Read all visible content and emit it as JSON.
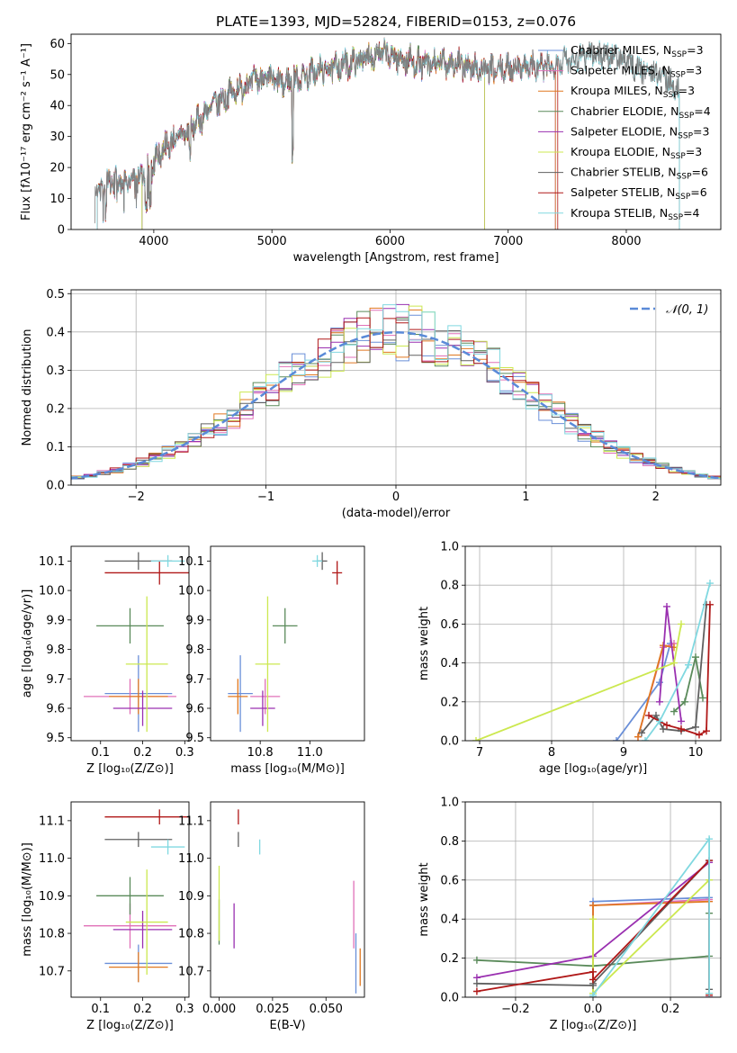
{
  "colors": {
    "Chabrier MILES": "#6a8fd8",
    "Salpeter MILES": "#e070b8",
    "Kroupa MILES": "#e07820",
    "Chabrier ELODIE": "#5a8a5a",
    "Salpeter ELODIE": "#9a30b0",
    "Kroupa ELODIE": "#cce850",
    "Chabrier STELIB": "#606060",
    "Salpeter STELIB": "#b01818",
    "Kroupa STELIB": "#80d8e0"
  },
  "chart_data": [
    {
      "id": "spectrum",
      "type": "line",
      "title": "PLATE=1393, MJD=52824, FIBERID=0153, z=0.076",
      "xlabel": "wavelength [Angstrom, rest frame]",
      "ylabel": "Flux [fλ10⁻¹⁷ erg cm⁻² s⁻¹ A⁻¹]",
      "xlim": [
        3300,
        8800
      ],
      "ylim": [
        0,
        63
      ],
      "xticks": [
        "4000",
        "5000",
        "6000",
        "7000",
        "8000"
      ],
      "yticks": [
        "0",
        "10",
        "20",
        "30",
        "40",
        "50",
        "60"
      ],
      "observed": {
        "x": [
          3500,
          3700,
          3900,
          4100,
          4300,
          4500,
          4700,
          4900,
          5100,
          5300,
          5500,
          5700,
          5900,
          6100,
          6300,
          6500,
          6700,
          6900,
          7100,
          7300,
          7500,
          7700,
          7900,
          8100,
          8300,
          8450
        ],
        "y": [
          14,
          15,
          17,
          27,
          32,
          40,
          45,
          49,
          47,
          50,
          52,
          54,
          57,
          55,
          53,
          54,
          52,
          51,
          53,
          52,
          55,
          57,
          56,
          52,
          50,
          45
        ]
      },
      "legend": [
        {
          "label": "Chabrier MILES, N",
          "sub": "SSP",
          "value": "=3"
        },
        {
          "label": "Salpeter MILES, N",
          "sub": "SSP",
          "value": "=3"
        },
        {
          "label": "Kroupa MILES, N",
          "sub": "SSP",
          "value": "=3"
        },
        {
          "label": "Chabrier ELODIE, N",
          "sub": "SSP",
          "value": "=4"
        },
        {
          "label": "Salpeter ELODIE, N",
          "sub": "SSP",
          "value": "=3"
        },
        {
          "label": "Kroupa ELODIE, N",
          "sub": "SSP",
          "value": "=3"
        },
        {
          "label": "Chabrier STELIB, N",
          "sub": "SSP",
          "value": "=6"
        },
        {
          "label": "Salpeter STELIB, N",
          "sub": "SSP",
          "value": "=6"
        },
        {
          "label": "Kroupa STELIB, N",
          "sub": "SSP",
          "value": "=4"
        }
      ],
      "legend_loc": "right"
    },
    {
      "id": "residuals",
      "type": "line",
      "xlabel": "(data-model)/error",
      "ylabel": "Normed distribution",
      "xlim": [
        -2.5,
        2.5
      ],
      "ylim": [
        0,
        0.51
      ],
      "xticks": [
        "−2",
        "−1",
        "0",
        "1",
        "2"
      ],
      "yticks": [
        "0.0",
        "0.1",
        "0.2",
        "0.3",
        "0.4",
        "0.5"
      ],
      "grid": true,
      "legend": "𝒩(0, 1)",
      "legend_loc": "top-right",
      "gaussian": {
        "mu": 0,
        "sigma": 1
      }
    },
    {
      "id": "age_vs_Z",
      "type": "scatter",
      "xlabel": "Z [log₁₀(Z/Z⊙)]",
      "ylabel": "age  [log₁₀(age/yr)]",
      "xlim": [
        0.03,
        0.31
      ],
      "ylim": [
        9.49,
        10.15
      ],
      "xticks": [
        "0.1",
        "0.2",
        "0.3"
      ],
      "yticks": [
        "9.5",
        "9.6",
        "9.7",
        "9.8",
        "9.9",
        "10.0",
        "10.1"
      ],
      "points": [
        {
          "model": "Chabrier MILES",
          "x": 0.19,
          "y": 9.65,
          "xerr": 0.08,
          "yerr": 0.13
        },
        {
          "model": "Salpeter MILES",
          "x": 0.17,
          "y": 9.64,
          "xerr": 0.11,
          "yerr": 0.06
        },
        {
          "model": "Kroupa MILES",
          "x": 0.19,
          "y": 9.64,
          "xerr": 0.07,
          "yerr": 0.06
        },
        {
          "model": "Chabrier ELODIE",
          "x": 0.17,
          "y": 9.88,
          "xerr": 0.08,
          "yerr": 0.06
        },
        {
          "model": "Salpeter ELODIE",
          "x": 0.2,
          "y": 9.6,
          "xerr": 0.07,
          "yerr": 0.06
        },
        {
          "model": "Kroupa ELODIE",
          "x": 0.21,
          "y": 9.75,
          "xerr": 0.05,
          "yerr": 0.23
        },
        {
          "model": "Chabrier STELIB",
          "x": 0.19,
          "y": 10.1,
          "xerr": 0.08,
          "yerr": 0.03
        },
        {
          "model": "Salpeter STELIB",
          "x": 0.24,
          "y": 10.06,
          "xerr": 0.13,
          "yerr": 0.04
        },
        {
          "model": "Kroupa STELIB",
          "x": 0.26,
          "y": 10.1,
          "xerr": 0.04,
          "yerr": 0.02
        }
      ]
    },
    {
      "id": "age_vs_mass",
      "type": "scatter",
      "xlabel": "mass [log₁₀(M/M⊙)]",
      "xlim": [
        10.6,
        11.22
      ],
      "ylim": [
        9.49,
        10.15
      ],
      "xticks": [
        "10.8",
        "11.0"
      ],
      "yticks": [
        "9.5",
        "9.6",
        "9.7",
        "9.8",
        "9.9",
        "10.0",
        "10.1"
      ],
      "points": [
        {
          "model": "Chabrier MILES",
          "x": 10.72,
          "y": 9.65,
          "xerr": 0.05,
          "yerr": 0.13
        },
        {
          "model": "Salpeter MILES",
          "x": 10.82,
          "y": 9.64,
          "xerr": 0.06,
          "yerr": 0.06
        },
        {
          "model": "Kroupa MILES",
          "x": 10.71,
          "y": 9.64,
          "xerr": 0.04,
          "yerr": 0.06
        },
        {
          "model": "Chabrier ELODIE",
          "x": 10.9,
          "y": 9.88,
          "xerr": 0.05,
          "yerr": 0.06
        },
        {
          "model": "Salpeter ELODIE",
          "x": 10.81,
          "y": 9.6,
          "xerr": 0.05,
          "yerr": 0.06
        },
        {
          "model": "Kroupa ELODIE",
          "x": 10.83,
          "y": 9.75,
          "xerr": 0.05,
          "yerr": 0.23
        },
        {
          "model": "Chabrier STELIB",
          "x": 11.05,
          "y": 10.1,
          "xerr": 0.02,
          "yerr": 0.03
        },
        {
          "model": "Salpeter STELIB",
          "x": 11.11,
          "y": 10.06,
          "xerr": 0.02,
          "yerr": 0.04
        },
        {
          "model": "Kroupa STELIB",
          "x": 11.03,
          "y": 10.1,
          "xerr": 0.02,
          "yerr": 0.02
        }
      ]
    },
    {
      "id": "weight_vs_age",
      "type": "line",
      "xlabel": "age  [log₁₀(age/yr)]",
      "ylabel": "mass weight",
      "xlim": [
        6.8,
        10.35
      ],
      "ylim": [
        0,
        1
      ],
      "xticks": [
        "7",
        "8",
        "9",
        "10"
      ],
      "yticks": [
        "0.0",
        "0.2",
        "0.4",
        "0.6",
        "0.8",
        "1.0"
      ],
      "grid": true,
      "series": [
        {
          "model": "Chabrier MILES",
          "x": [
            8.9,
            9.5,
            9.65
          ],
          "y": [
            0.0,
            0.3,
            0.5
          ]
        },
        {
          "model": "Salpeter MILES",
          "x": [
            9.2,
            9.55,
            9.7
          ],
          "y": [
            0.02,
            0.48,
            0.5
          ]
        },
        {
          "model": "Kroupa MILES",
          "x": [
            9.2,
            9.55,
            9.7
          ],
          "y": [
            0.02,
            0.49,
            0.48
          ]
        },
        {
          "model": "Chabrier ELODIE",
          "x": [
            9.7,
            9.85,
            10.0,
            10.1
          ],
          "y": [
            0.15,
            0.2,
            0.43,
            0.22
          ]
        },
        {
          "model": "Salpeter ELODIE",
          "x": [
            9.5,
            9.6,
            9.8
          ],
          "y": [
            0.2,
            0.69,
            0.1
          ]
        },
        {
          "model": "Kroupa ELODIE",
          "x": [
            6.95,
            9.7,
            9.8
          ],
          "y": [
            0.0,
            0.4,
            0.6
          ]
        },
        {
          "model": "Chabrier STELIB",
          "x": [
            9.25,
            9.45,
            9.55,
            9.8,
            10.0,
            10.15
          ],
          "y": [
            0.04,
            0.13,
            0.06,
            0.05,
            0.07,
            0.7
          ]
        },
        {
          "model": "Salpeter STELIB",
          "x": [
            9.35,
            9.6,
            9.8,
            10.05,
            10.15,
            10.2
          ],
          "y": [
            0.13,
            0.08,
            0.06,
            0.03,
            0.05,
            0.7
          ]
        },
        {
          "model": "Kroupa STELIB",
          "x": [
            9.3,
            9.5,
            9.9,
            10.2
          ],
          "y": [
            0.0,
            0.1,
            0.39,
            0.81
          ]
        }
      ]
    },
    {
      "id": "mass_vs_Z",
      "type": "scatter",
      "xlabel": "Z [log₁₀(Z/Z⊙)]",
      "ylabel": "mass [log₁₀(M/M⊙)]",
      "xlim": [
        0.03,
        0.31
      ],
      "ylim": [
        10.63,
        11.15
      ],
      "xticks": [
        "0.1",
        "0.2",
        "0.3"
      ],
      "yticks": [
        "10.7",
        "10.8",
        "10.9",
        "11.0",
        "11.1"
      ],
      "points": [
        {
          "model": "Chabrier MILES",
          "x": 0.19,
          "y": 10.72,
          "xerr": 0.08,
          "yerr": 0.05
        },
        {
          "model": "Salpeter MILES",
          "x": 0.17,
          "y": 10.82,
          "xerr": 0.11,
          "yerr": 0.06
        },
        {
          "model": "Kroupa MILES",
          "x": 0.19,
          "y": 10.71,
          "xerr": 0.07,
          "yerr": 0.04
        },
        {
          "model": "Chabrier ELODIE",
          "x": 0.17,
          "y": 10.9,
          "xerr": 0.08,
          "yerr": 0.05
        },
        {
          "model": "Salpeter ELODIE",
          "x": 0.2,
          "y": 10.81,
          "xerr": 0.07,
          "yerr": 0.05
        },
        {
          "model": "Kroupa ELODIE",
          "x": 0.21,
          "y": 10.83,
          "xerr": 0.05,
          "yerr": 0.14
        },
        {
          "model": "Chabrier STELIB",
          "x": 0.19,
          "y": 11.05,
          "xerr": 0.08,
          "yerr": 0.02
        },
        {
          "model": "Salpeter STELIB",
          "x": 0.24,
          "y": 11.11,
          "xerr": 0.13,
          "yerr": 0.02
        },
        {
          "model": "Kroupa STELIB",
          "x": 0.26,
          "y": 11.03,
          "xerr": 0.04,
          "yerr": 0.02
        }
      ]
    },
    {
      "id": "mass_vs_EBV",
      "type": "scatter",
      "xlabel": "E(B-V)",
      "xlim": [
        -0.004,
        0.068
      ],
      "ylim": [
        10.63,
        11.15
      ],
      "xticks": [
        "0.000",
        "0.025",
        "0.050"
      ],
      "yticks": [
        "10.7",
        "10.8",
        "10.9",
        "11.0",
        "11.1"
      ],
      "points": [
        {
          "model": "Chabrier MILES",
          "x": 0.064,
          "y": 10.72,
          "xerr": 0,
          "yerr": 0.08
        },
        {
          "model": "Salpeter MILES",
          "x": 0.063,
          "y": 10.85,
          "xerr": 0,
          "yerr": 0.09
        },
        {
          "model": "Kroupa MILES",
          "x": 0.066,
          "y": 10.71,
          "xerr": 0,
          "yerr": 0.05
        },
        {
          "model": "Chabrier ELODIE",
          "x": 0.0,
          "y": 10.83,
          "xerr": 0,
          "yerr": 0.06
        },
        {
          "model": "Salpeter ELODIE",
          "x": 0.007,
          "y": 10.82,
          "xerr": 0,
          "yerr": 0.06
        },
        {
          "model": "Kroupa ELODIE",
          "x": 0.0,
          "y": 10.88,
          "xerr": 0,
          "yerr": 0.1
        },
        {
          "model": "Chabrier STELIB",
          "x": 0.009,
          "y": 11.05,
          "xerr": 0,
          "yerr": 0.02
        },
        {
          "model": "Salpeter STELIB",
          "x": 0.009,
          "y": 11.11,
          "xerr": 0,
          "yerr": 0.02
        },
        {
          "model": "Kroupa STELIB",
          "x": 0.019,
          "y": 11.03,
          "xerr": 0,
          "yerr": 0.02
        }
      ]
    },
    {
      "id": "weight_vs_Z",
      "type": "line",
      "xlabel": "Z [log₁₀(Z/Z⊙)]",
      "ylabel": "mass weight",
      "xlim": [
        -0.33,
        0.33
      ],
      "ylim": [
        0,
        1
      ],
      "xticks": [
        "−0.2",
        "0.0",
        "0.2"
      ],
      "yticks": [
        "0.0",
        "0.2",
        "0.4",
        "0.6",
        "0.8",
        "1.0"
      ],
      "grid": true,
      "series": [
        {
          "model": "Chabrier MILES",
          "x": [
            0.0,
            0.0,
            0.3,
            0.3
          ],
          "y": [
            0.0,
            0.49,
            0.51,
            0.0
          ]
        },
        {
          "model": "Salpeter MILES",
          "x": [
            0.0,
            0.0,
            0.3,
            0.3
          ],
          "y": [
            0.0,
            0.47,
            0.5,
            0.0
          ]
        },
        {
          "model": "Kroupa MILES",
          "x": [
            0.0,
            0.0,
            0.3,
            0.3
          ],
          "y": [
            0.0,
            0.47,
            0.49,
            0.02
          ]
        },
        {
          "model": "Chabrier ELODIE",
          "x": [
            -0.3,
            0.0,
            0.3,
            0.3
          ],
          "y": [
            0.19,
            0.16,
            0.21,
            0.43
          ]
        },
        {
          "model": "Salpeter ELODIE",
          "x": [
            -0.3,
            0.0,
            0.3
          ],
          "y": [
            0.1,
            0.21,
            0.69
          ]
        },
        {
          "model": "Kroupa ELODIE",
          "x": [
            0.0,
            0.0,
            0.3,
            0.3
          ],
          "y": [
            0.4,
            0.02,
            0.6,
            0.6
          ]
        },
        {
          "model": "Chabrier STELIB",
          "x": [
            -0.3,
            0.0,
            0.0,
            0.3,
            0.3
          ],
          "y": [
            0.07,
            0.06,
            0.07,
            0.7,
            0.04
          ]
        },
        {
          "model": "Salpeter STELIB",
          "x": [
            -0.3,
            0.0,
            0.0,
            0.3,
            0.3
          ],
          "y": [
            0.03,
            0.13,
            0.09,
            0.7,
            0.01
          ]
        },
        {
          "model": "Kroupa STELIB",
          "x": [
            0.0,
            0.0,
            0.3,
            0.3
          ],
          "y": [
            0.0,
            0.01,
            0.81,
            0.02
          ]
        }
      ]
    }
  ]
}
